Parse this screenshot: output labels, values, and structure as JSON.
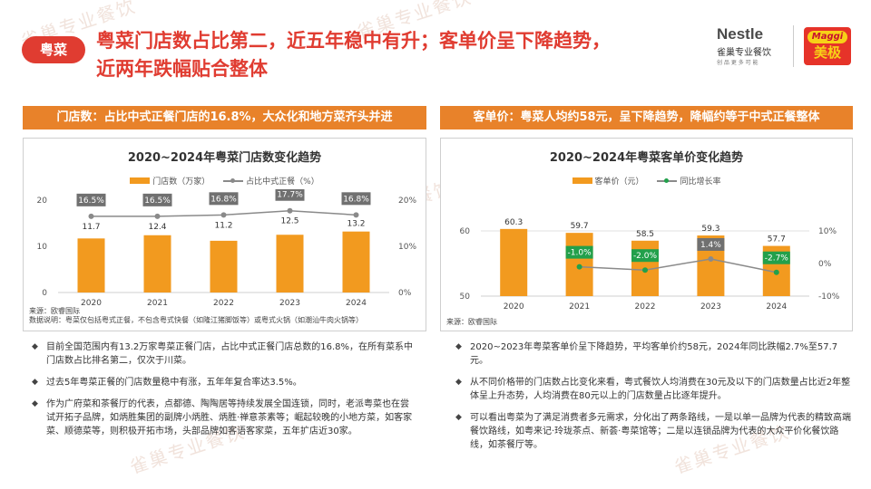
{
  "header": {
    "tag": "粤菜",
    "title_line1": "粤菜门店数占比第二，近五年稳中有升；客单价呈下降趋势，",
    "title_line2": "近两年跌幅贴合整体"
  },
  "logos": {
    "nestle_name": "Nestle",
    "nestle_sub": "雀巢专业餐饮",
    "nestle_tagline": "创 品 更 多 可 能",
    "maggi_name": "Maggi",
    "maggi_cn": "美极"
  },
  "watermark": "雀巢专业餐饮",
  "left": {
    "banner": "门店数：占比中式正餐门店的16.8%，大众化和地方菜齐头并进",
    "source_line1": "来源：欧睿国际",
    "source_line2": "数据说明：粤菜仅包括粤式正餐，不包含粤式快餐（如隆江猪脚饭等）或粤式火锅（如潮汕牛肉火锅等）",
    "bullets": [
      "目前全国范围内有13.2万家粤菜正餐门店，占比中式正餐门店总数的16.8%，在所有菜系中门店数占比排名第二，仅次于川菜。",
      "过去5年粤菜正餐的门店数量稳中有涨，五年年复合率达3.5%。",
      "作为广府菜和茶餐厅的代表，点都德、陶陶居等持续发展全国连锁，同时，老派粤菜也在尝试开拓子品牌，如炳胜集团的副牌小炳胜、炳胜·禅意茶素等；崛起较晚的小地方菜，如客家菜、顺德菜等，则积极开拓市场，头部品牌如客语客家菜，五年扩店近30家。"
    ]
  },
  "right": {
    "banner": "客单价：粤菜人均约58元，呈下降趋势，降幅约等于中式正餐整体",
    "source_line1": "来源：欧睿国际",
    "bullets": [
      "2020~2023年粤菜客单价呈下降趋势，平均客单价约58元，2024年同比跌幅2.7%至57.7元。",
      "从不同价格带的门店数占比变化来看，粤式餐饮人均消费在30元及以下的门店数量占比近2年整体呈上升态势，人均消费在80元以上的门店数量占比逐年提升。",
      "可以看出粤菜为了满足消费者多元需求，分化出了两条路线，一是以单一品牌为代表的精致高端餐饮路线，如粤来记·玲珑茶点、新荟·粤菜馆等；二是以连锁品牌为代表的大众平价化餐饮路线，如茶餐厅等。"
    ]
  },
  "chart_data": [
    {
      "type": "bar",
      "title": "2020~2024年粤菜门店数变化趋势",
      "categories": [
        "2020",
        "2021",
        "2022",
        "2023",
        "2024"
      ],
      "series": [
        {
          "name": "门店数（万家）",
          "type": "bar",
          "axis": "left",
          "values": [
            11.7,
            12.4,
            11.2,
            12.5,
            13.2
          ],
          "labels": [
            "11.7",
            "12.4",
            "11.2",
            "12.5",
            "13.2"
          ]
        },
        {
          "name": "占比中式正餐（%）",
          "type": "line",
          "axis": "right",
          "values": [
            16.5,
            16.5,
            16.8,
            17.7,
            16.8
          ],
          "labels": [
            "16.5%",
            "16.5%",
            "16.8%",
            "17.7%",
            "16.8%"
          ]
        }
      ],
      "ylim_left": [
        0,
        20
      ],
      "yticks_left": [
        "0",
        "10",
        "20"
      ],
      "ylim_right": [
        0,
        20
      ],
      "yticks_right": [
        "0%",
        "10%",
        "20%"
      ],
      "legend": "top-center",
      "grid": false,
      "colors": {
        "bar": "#f29a1f",
        "line": "#8a8a8a",
        "label_bg": "#707070"
      }
    },
    {
      "type": "bar",
      "title": "2020~2024年粤菜客单价变化趋势",
      "categories": [
        "2020",
        "2021",
        "2022",
        "2023",
        "2024"
      ],
      "series": [
        {
          "name": "客单价（元）",
          "type": "bar",
          "axis": "left",
          "values": [
            60.3,
            59.7,
            58.5,
            59.3,
            57.7
          ],
          "labels": [
            "60.3",
            "59.7",
            "58.5",
            "59.3",
            "57.7"
          ]
        },
        {
          "name": "同比增长率",
          "type": "line",
          "axis": "right",
          "values": [
            null,
            -1.0,
            -2.0,
            1.4,
            -2.7
          ],
          "labels": [
            "",
            "-1.0%",
            "-2.0%",
            "1.4%",
            "-2.7%"
          ]
        }
      ],
      "ylim_left": [
        50,
        60
      ],
      "yticks_left": [
        "50",
        "60"
      ],
      "ylim_right": [
        -10,
        10
      ],
      "yticks_right": [
        "-10%",
        "0%",
        "10%"
      ],
      "legend": "top-center",
      "grid": true,
      "colors": {
        "bar": "#f29a1f",
        "line": "#8a8a8a",
        "point_neg": "#22a04b",
        "point_pos": "#8a8a8a",
        "label_neg": "#22a04b",
        "label_pos": "#707070"
      }
    }
  ]
}
